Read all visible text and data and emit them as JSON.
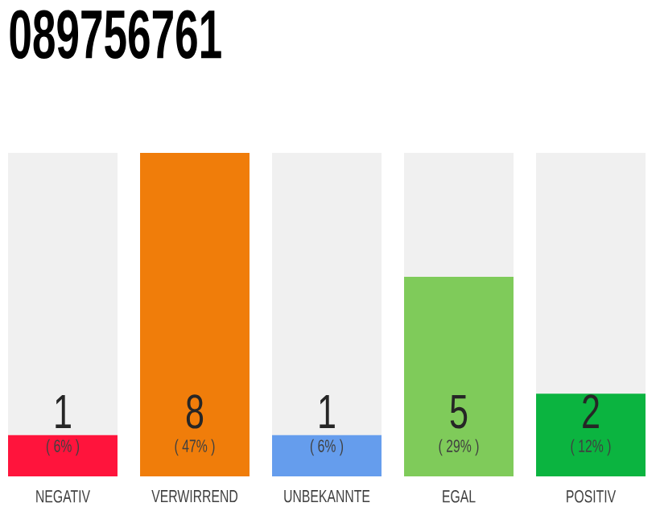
{
  "chart_data": {
    "type": "bar",
    "title": "089756761",
    "categories": [
      "NEGATIV",
      "VERWIRREND",
      "UNBEKANNTE",
      "EGAL",
      "POSITIV"
    ],
    "values": [
      6,
      47,
      6,
      29,
      12
    ],
    "colors": [
      "#ff143c",
      "#f07d0a",
      "#659ded",
      "#7fcb5a",
      "#0bb440"
    ],
    "value_labels": [
      "( 6% )",
      "( 47% )",
      "( 6% )",
      "( 29% )",
      "( 12% )"
    ],
    "annotations": [
      "1",
      "8",
      "1",
      "5",
      "2"
    ]
  }
}
